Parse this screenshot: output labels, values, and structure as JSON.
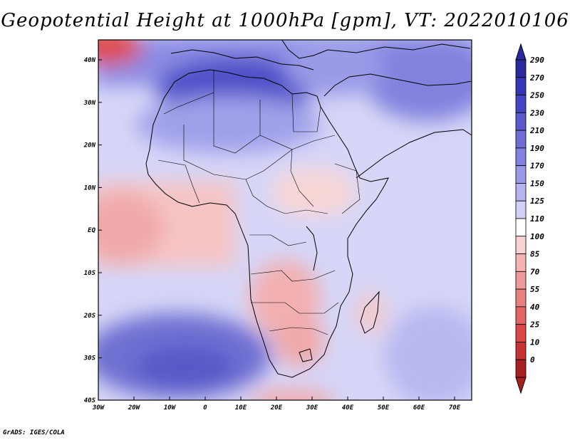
{
  "title": "Geopotential Height at 1000hPa [gpm], VT: 2022010106",
  "credit": "GrADS: IGES/COLA",
  "map": {
    "x_ticks": [
      "30W",
      "20W",
      "10W",
      "0",
      "10E",
      "20E",
      "30E",
      "40E",
      "50E",
      "60E",
      "70E"
    ],
    "y_ticks": [
      "40N",
      "30N",
      "20N",
      "10N",
      "EQ",
      "10S",
      "20S",
      "30S",
      "40S"
    ]
  },
  "colorbar": {
    "levels": [
      "290",
      "270",
      "250",
      "230",
      "210",
      "190",
      "170",
      "150",
      "125",
      "110",
      "100",
      "85",
      "70",
      "55",
      "40",
      "25",
      "10",
      "0"
    ],
    "colors": [
      "#2a2a9e",
      "#3636b4",
      "#4646c4",
      "#5a5acc",
      "#6e6ed6",
      "#8282e0",
      "#9a9ae8",
      "#b4b4f0",
      "#d0d0f8",
      "#ffffff",
      "#f8d2d2",
      "#f4b4b4",
      "#ee9a9a",
      "#e88080",
      "#e26464",
      "#da4848",
      "#c83232",
      "#a82020"
    ]
  }
}
